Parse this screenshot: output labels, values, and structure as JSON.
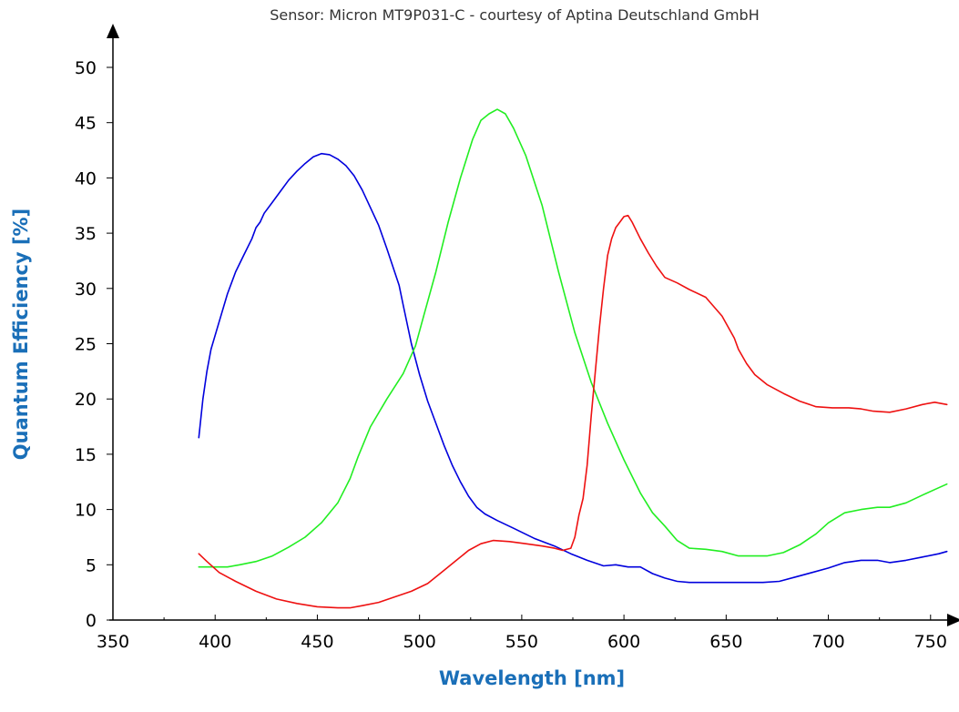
{
  "chart_data": {
    "type": "line",
    "title": "Sensor: Micron MT9P031-C - courtesy of Aptina Deutschland GmbH",
    "xlabel": "Wavelength [nm]",
    "ylabel": "Quantum Efficiency [%]",
    "xlim": [
      350,
      760
    ],
    "ylim": [
      0,
      50
    ],
    "x_ticks": [
      350,
      400,
      450,
      500,
      550,
      600,
      650,
      700,
      750
    ],
    "y_ticks": [
      0,
      5,
      10,
      15,
      20,
      25,
      30,
      35,
      40,
      45,
      50
    ],
    "grid": false,
    "legend": "none",
    "colors": {
      "axis": "#000000",
      "axis_title": "#1a6fb8",
      "title": "#333333"
    },
    "series": [
      {
        "color": "#0000dd",
        "points": [
          [
            392,
            16.5
          ],
          [
            394,
            20
          ],
          [
            396,
            22.5
          ],
          [
            398,
            24.5
          ],
          [
            402,
            27
          ],
          [
            406,
            29.5
          ],
          [
            410,
            31.5
          ],
          [
            414,
            33
          ],
          [
            418,
            34.5
          ],
          [
            420,
            35.5
          ],
          [
            422,
            36
          ],
          [
            424,
            36.8
          ],
          [
            428,
            37.8
          ],
          [
            432,
            38.8
          ],
          [
            436,
            39.8
          ],
          [
            440,
            40.6
          ],
          [
            444,
            41.3
          ],
          [
            448,
            41.9
          ],
          [
            452,
            42.2
          ],
          [
            456,
            42.1
          ],
          [
            460,
            41.7
          ],
          [
            464,
            41.1
          ],
          [
            468,
            40.2
          ],
          [
            472,
            38.9
          ],
          [
            476,
            37.3
          ],
          [
            480,
            35.7
          ],
          [
            484,
            33.6
          ],
          [
            488,
            31.4
          ],
          [
            490,
            30.3
          ],
          [
            492,
            28.5
          ],
          [
            496,
            25
          ],
          [
            500,
            22.2
          ],
          [
            504,
            19.8
          ],
          [
            508,
            17.8
          ],
          [
            512,
            15.8
          ],
          [
            516,
            14
          ],
          [
            520,
            12.5
          ],
          [
            524,
            11.2
          ],
          [
            528,
            10.2
          ],
          [
            532,
            9.6
          ],
          [
            538,
            9
          ],
          [
            546,
            8.3
          ],
          [
            556,
            7.4
          ],
          [
            566,
            6.7
          ],
          [
            574,
            6
          ],
          [
            582,
            5.4
          ],
          [
            590,
            4.9
          ],
          [
            596,
            5
          ],
          [
            602,
            4.8
          ],
          [
            608,
            4.8
          ],
          [
            614,
            4.2
          ],
          [
            620,
            3.8
          ],
          [
            626,
            3.5
          ],
          [
            632,
            3.4
          ],
          [
            640,
            3.4
          ],
          [
            650,
            3.4
          ],
          [
            660,
            3.4
          ],
          [
            668,
            3.4
          ],
          [
            676,
            3.5
          ],
          [
            684,
            3.9
          ],
          [
            692,
            4.3
          ],
          [
            700,
            4.7
          ],
          [
            708,
            5.2
          ],
          [
            716,
            5.4
          ],
          [
            724,
            5.4
          ],
          [
            730,
            5.2
          ],
          [
            738,
            5.4
          ],
          [
            746,
            5.7
          ],
          [
            754,
            6
          ],
          [
            758,
            6.2
          ]
        ]
      },
      {
        "color": "#22ee22",
        "points": [
          [
            392,
            4.8
          ],
          [
            400,
            4.8
          ],
          [
            406,
            4.8
          ],
          [
            412,
            5
          ],
          [
            420,
            5.3
          ],
          [
            428,
            5.8
          ],
          [
            436,
            6.6
          ],
          [
            444,
            7.5
          ],
          [
            452,
            8.8
          ],
          [
            460,
            10.6
          ],
          [
            466,
            12.8
          ],
          [
            470,
            14.8
          ],
          [
            476,
            17.5
          ],
          [
            484,
            20
          ],
          [
            492,
            22.3
          ],
          [
            498,
            24.8
          ],
          [
            502,
            27.5
          ],
          [
            508,
            31.5
          ],
          [
            514,
            36
          ],
          [
            520,
            40
          ],
          [
            526,
            43.5
          ],
          [
            530,
            45.2
          ],
          [
            534,
            45.8
          ],
          [
            538,
            46.2
          ],
          [
            542,
            45.8
          ],
          [
            546,
            44.5
          ],
          [
            552,
            42
          ],
          [
            560,
            37.5
          ],
          [
            568,
            31.5
          ],
          [
            576,
            26
          ],
          [
            584,
            21.5
          ],
          [
            592,
            17.8
          ],
          [
            600,
            14.5
          ],
          [
            608,
            11.5
          ],
          [
            614,
            9.7
          ],
          [
            620,
            8.5
          ],
          [
            626,
            7.2
          ],
          [
            632,
            6.5
          ],
          [
            640,
            6.4
          ],
          [
            648,
            6.2
          ],
          [
            656,
            5.8
          ],
          [
            664,
            5.8
          ],
          [
            670,
            5.8
          ],
          [
            678,
            6.1
          ],
          [
            686,
            6.8
          ],
          [
            694,
            7.8
          ],
          [
            700,
            8.8
          ],
          [
            708,
            9.7
          ],
          [
            716,
            10
          ],
          [
            724,
            10.2
          ],
          [
            730,
            10.2
          ],
          [
            738,
            10.6
          ],
          [
            746,
            11.3
          ],
          [
            752,
            11.8
          ],
          [
            758,
            12.3
          ]
        ]
      },
      {
        "color": "#ee1111",
        "points": [
          [
            392,
            6
          ],
          [
            396,
            5.3
          ],
          [
            402,
            4.3
          ],
          [
            410,
            3.5
          ],
          [
            420,
            2.6
          ],
          [
            430,
            1.9
          ],
          [
            440,
            1.5
          ],
          [
            450,
            1.2
          ],
          [
            460,
            1.1
          ],
          [
            466,
            1.1
          ],
          [
            472,
            1.3
          ],
          [
            480,
            1.6
          ],
          [
            488,
            2.1
          ],
          [
            496,
            2.6
          ],
          [
            504,
            3.3
          ],
          [
            512,
            4.5
          ],
          [
            518,
            5.4
          ],
          [
            524,
            6.3
          ],
          [
            530,
            6.9
          ],
          [
            536,
            7.2
          ],
          [
            544,
            7.1
          ],
          [
            552,
            6.9
          ],
          [
            560,
            6.7
          ],
          [
            566,
            6.5
          ],
          [
            570,
            6.3
          ],
          [
            574,
            6.5
          ],
          [
            576,
            7.5
          ],
          [
            578,
            9.5
          ],
          [
            580,
            11
          ],
          [
            582,
            14
          ],
          [
            584,
            18.5
          ],
          [
            586,
            22.5
          ],
          [
            588,
            26.5
          ],
          [
            590,
            30
          ],
          [
            592,
            33
          ],
          [
            594,
            34.5
          ],
          [
            596,
            35.5
          ],
          [
            598,
            36
          ],
          [
            600,
            36.5
          ],
          [
            602,
            36.6
          ],
          [
            604,
            36
          ],
          [
            608,
            34.5
          ],
          [
            612,
            33.2
          ],
          [
            616,
            32
          ],
          [
            620,
            31
          ],
          [
            626,
            30.5
          ],
          [
            632,
            29.9
          ],
          [
            640,
            29.2
          ],
          [
            648,
            27.5
          ],
          [
            654,
            25.5
          ],
          [
            656,
            24.5
          ],
          [
            660,
            23.2
          ],
          [
            664,
            22.2
          ],
          [
            670,
            21.3
          ],
          [
            678,
            20.5
          ],
          [
            686,
            19.8
          ],
          [
            694,
            19.3
          ],
          [
            702,
            19.2
          ],
          [
            710,
            19.2
          ],
          [
            716,
            19.1
          ],
          [
            722,
            18.9
          ],
          [
            730,
            18.8
          ],
          [
            738,
            19.1
          ],
          [
            746,
            19.5
          ],
          [
            752,
            19.7
          ],
          [
            758,
            19.5
          ]
        ]
      }
    ]
  }
}
